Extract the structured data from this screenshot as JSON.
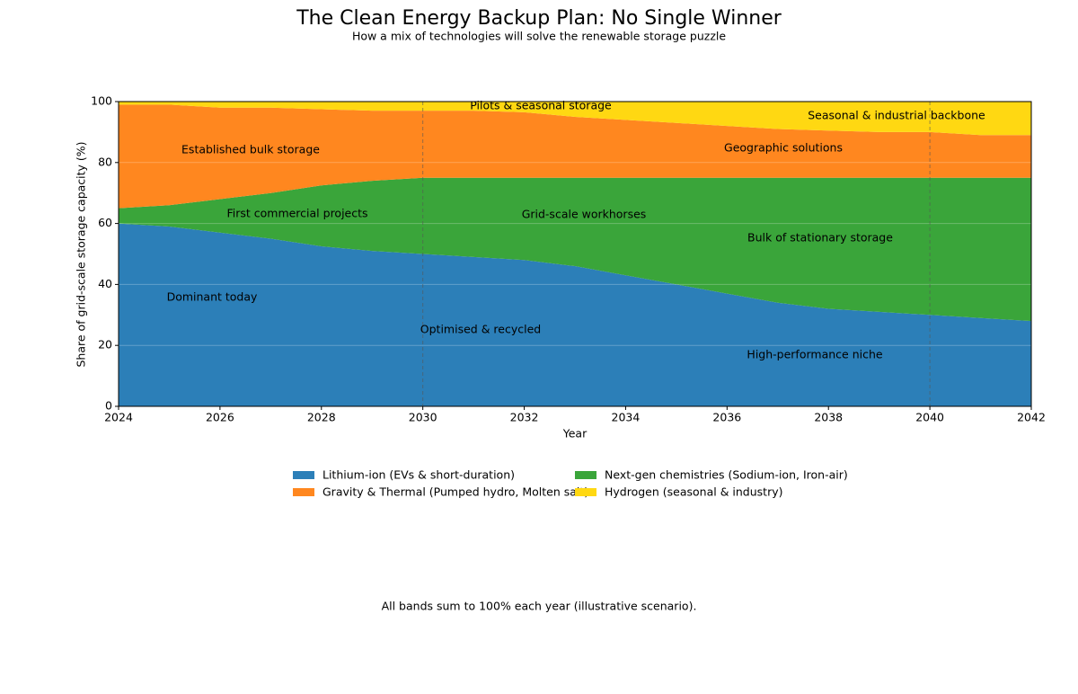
{
  "chart_data": {
    "type": "stacked-area",
    "title": "The Clean Energy Backup Plan: No Single Winner",
    "subtitle": "How a mix of technologies will solve the renewable storage puzzle",
    "x_label": "Year",
    "y_label": "Share of grid-scale storage capacity (%)",
    "x": [
      2024,
      2025,
      2026,
      2027,
      2028,
      2029,
      2030,
      2031,
      2032,
      2033,
      2034,
      2035,
      2036,
      2037,
      2038,
      2039,
      2040,
      2041,
      2042
    ],
    "series": [
      {
        "name": "Lithium-ion (EVs & short-duration)",
        "color": "#2c7fb8",
        "values": [
          60,
          59,
          57,
          55,
          52.5,
          51,
          50,
          49,
          48,
          46,
          43,
          40,
          37,
          34,
          32,
          31,
          30,
          29,
          28
        ]
      },
      {
        "name": "Next-gen chemistries (Sodium-ion, Iron-air)",
        "color": "#3aa53a",
        "values": [
          5,
          7,
          11,
          15,
          20,
          23,
          25,
          26,
          27,
          29,
          32,
          35,
          38,
          41,
          43,
          44,
          45,
          46,
          47
        ]
      },
      {
        "name": "Gravity & Thermal (Pumped hydro, Molten salt)",
        "color": "#ff871f",
        "values": [
          34,
          33,
          30,
          28,
          25,
          23,
          22,
          22,
          21.5,
          20,
          19,
          18,
          17,
          16,
          15.5,
          15,
          15,
          14,
          14
        ]
      },
      {
        "name": "Hydrogen (seasonal & industry)",
        "color": "#ffd812",
        "values": [
          1,
          1,
          2,
          2,
          2.5,
          3,
          3,
          3,
          3.5,
          5,
          6,
          7,
          8,
          9,
          9.5,
          10,
          10,
          11,
          11
        ]
      }
    ],
    "xlim": [
      2024,
      2042
    ],
    "ylim": [
      0,
      100
    ],
    "xticks": [
      2024,
      2026,
      2028,
      2030,
      2032,
      2034,
      2036,
      2038,
      2040,
      2042
    ],
    "yticks": [
      0,
      20,
      40,
      60,
      80,
      100
    ],
    "grid": true,
    "milestones": [
      2030,
      2040
    ],
    "annotations": [
      "Established bulk storage",
      "First commercial projects",
      "Dominant today",
      "Pilots & seasonal storage",
      "Grid-scale workhorses",
      "Optimised & recycled",
      "Geographic solutions",
      "Bulk of stationary storage",
      "High-performance niche",
      "Seasonal & industrial backbone"
    ],
    "footnote": "All bands sum to 100% each year (illustrative scenario)."
  }
}
